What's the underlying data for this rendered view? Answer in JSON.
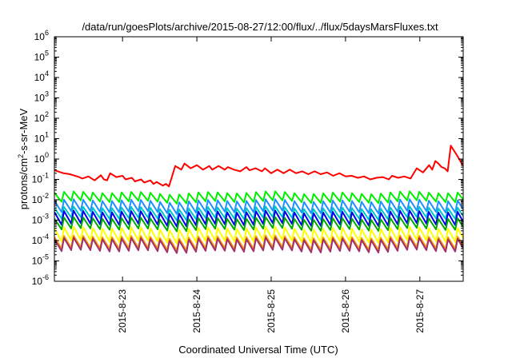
{
  "chart_data": {
    "type": "line",
    "title": "/data/run/goesPlots/archive/2015-08-27/12:00/flux/../flux/5daysMarsFluxes.txt",
    "xlabel": "Coordinated Universal Time (UTC)",
    "ylabel": {
      "prefix": "protons/cm",
      "superscript": "2",
      "suffix": "-s-sr-MeV"
    },
    "y_scale": "log",
    "ylim": [
      1e-06,
      1000000.0
    ],
    "y_ticks": [
      {
        "value": 1e-06,
        "base": "10",
        "exp": "-6"
      },
      {
        "value": 1e-05,
        "base": "10",
        "exp": "-5"
      },
      {
        "value": 0.0001,
        "base": "10",
        "exp": "-4"
      },
      {
        "value": 0.001,
        "base": "10",
        "exp": "-3"
      },
      {
        "value": 0.01,
        "base": "10",
        "exp": "-2"
      },
      {
        "value": 0.1,
        "base": "10",
        "exp": "-1"
      },
      {
        "value": 1,
        "base": "10",
        "exp": "0"
      },
      {
        "value": 10,
        "base": "10",
        "exp": "1"
      },
      {
        "value": 100,
        "base": "10",
        "exp": "2"
      },
      {
        "value": 1000,
        "base": "10",
        "exp": "3"
      },
      {
        "value": 10000,
        "base": "10",
        "exp": "4"
      },
      {
        "value": 100000,
        "base": "10",
        "exp": "5"
      },
      {
        "value": 1000000,
        "base": "10",
        "exp": "6"
      }
    ],
    "xlim": [
      "2015-08-22T02:00",
      "2015-08-27T14:00"
    ],
    "x_ticks": [
      {
        "value": "2015-08-23T00:00",
        "label": "2015-8-23"
      },
      {
        "value": "2015-08-24T00:00",
        "label": "2015-8-24"
      },
      {
        "value": "2015-08-25T00:00",
        "label": "2015-8-25"
      },
      {
        "value": "2015-08-26T00:00",
        "label": "2015-8-26"
      },
      {
        "value": "2015-08-27T00:00",
        "label": "2015-8-27"
      }
    ],
    "grid": false,
    "legend": "none",
    "series": [
      {
        "color": "#ff0000",
        "style": "smooth",
        "x": [
          "2015-08-22T02:00",
          "2015-08-22T05:00",
          "2015-08-22T07:00",
          "2015-08-22T10:00",
          "2015-08-22T11:00",
          "2015-08-22T13:00",
          "2015-08-22T14:00",
          "2015-08-22T15:00",
          "2015-08-22T17:00",
          "2015-08-22T18:00",
          "2015-08-22T19:00",
          "2015-08-22T20:00",
          "2015-08-22T22:00",
          "2015-08-23T00:00",
          "2015-08-23T01:00",
          "2015-08-23T03:00",
          "2015-08-23T04:00",
          "2015-08-23T06:00",
          "2015-08-23T07:00",
          "2015-08-23T09:00",
          "2015-08-23T10:00",
          "2015-08-23T11:00",
          "2015-08-23T13:00",
          "2015-08-23T14:00",
          "2015-08-23T15:00",
          "2015-08-23T17:00",
          "2015-08-23T19:00",
          "2015-08-23T20:00",
          "2015-08-23T22:00",
          "2015-08-24T00:00",
          "2015-08-24T02:00",
          "2015-08-24T04:00",
          "2015-08-24T05:00",
          "2015-08-24T07:00",
          "2015-08-24T09:00",
          "2015-08-24T10:00",
          "2015-08-24T12:00",
          "2015-08-24T14:00",
          "2015-08-24T16:00",
          "2015-08-24T17:00",
          "2015-08-24T19:00",
          "2015-08-24T21:00",
          "2015-08-24T22:00",
          "2015-08-25T00:00",
          "2015-08-25T02:00",
          "2015-08-25T04:00",
          "2015-08-25T06:00",
          "2015-08-25T08:00",
          "2015-08-25T10:00",
          "2015-08-25T12:00",
          "2015-08-25T14:00",
          "2015-08-25T16:00",
          "2015-08-25T18:00",
          "2015-08-25T20:00",
          "2015-08-25T22:00",
          "2015-08-26T00:00",
          "2015-08-26T02:00",
          "2015-08-26T04:00",
          "2015-08-26T06:00",
          "2015-08-26T08:00",
          "2015-08-26T10:00",
          "2015-08-26T12:00",
          "2015-08-26T14:00",
          "2015-08-26T15:00",
          "2015-08-26T17:00",
          "2015-08-26T19:00",
          "2015-08-26T21:00",
          "2015-08-26T23:00",
          "2015-08-27T01:00",
          "2015-08-27T03:00",
          "2015-08-27T04:00",
          "2015-08-27T05:00",
          "2015-08-27T06:00",
          "2015-08-27T07:00",
          "2015-08-27T08:00",
          "2015-08-27T09:00",
          "2015-08-27T10:00",
          "2015-08-27T12:00",
          "2015-08-27T14:00"
        ],
        "y": [
          0.28,
          0.2,
          0.18,
          0.13,
          0.11,
          0.14,
          0.11,
          0.09,
          0.16,
          0.1,
          0.09,
          0.2,
          0.13,
          0.15,
          0.1,
          0.12,
          0.08,
          0.1,
          0.07,
          0.09,
          0.06,
          0.075,
          0.05,
          0.06,
          0.045,
          0.45,
          0.3,
          0.6,
          0.35,
          0.5,
          0.3,
          0.45,
          0.3,
          0.45,
          0.3,
          0.4,
          0.3,
          0.25,
          0.4,
          0.28,
          0.35,
          0.25,
          0.35,
          0.2,
          0.3,
          0.2,
          0.3,
          0.2,
          0.25,
          0.18,
          0.25,
          0.18,
          0.22,
          0.15,
          0.2,
          0.14,
          0.15,
          0.12,
          0.14,
          0.1,
          0.12,
          0.13,
          0.1,
          0.15,
          0.12,
          0.14,
          0.11,
          0.35,
          0.22,
          0.5,
          0.3,
          0.8,
          0.6,
          0.4,
          0.35,
          0.25,
          4.5,
          1.5,
          0.45
        ]
      },
      {
        "color": "#00ee00",
        "style": "sawtooth",
        "start": "2015-08-22T02:00",
        "end": "2015-08-27T14:00",
        "period_hours": 3.1,
        "peak": 0.022,
        "trough": 0.008
      },
      {
        "color": "#1e90ff",
        "style": "sawtooth",
        "start": "2015-08-22T02:00",
        "end": "2015-08-27T14:00",
        "period_hours": 3.1,
        "peak": 0.009,
        "trough": 0.0025
      },
      {
        "color": "#00c8c8",
        "style": "sawtooth",
        "start": "2015-08-22T02:00",
        "end": "2015-08-27T14:00",
        "period_hours": 3.1,
        "peak": 0.004,
        "trough": 0.0012
      },
      {
        "color": "#0000ee",
        "style": "sawtooth",
        "start": "2015-08-22T02:00",
        "end": "2015-08-27T14:00",
        "period_hours": 3.1,
        "peak": 0.0025,
        "trough": 0.0006
      },
      {
        "color": "#00aa00",
        "style": "sawtooth",
        "start": "2015-08-22T02:00",
        "end": "2015-08-27T14:00",
        "period_hours": 3.1,
        "peak": 0.0012,
        "trough": 0.00035
      },
      {
        "color": "#ffff00",
        "style": "sawtooth",
        "start": "2015-08-22T02:00",
        "end": "2015-08-27T14:00",
        "period_hours": 3.1,
        "peak": 0.0004,
        "trough": 9e-05
      },
      {
        "color": "#ff9900",
        "style": "sawtooth",
        "start": "2015-08-22T02:00",
        "end": "2015-08-27T14:00",
        "period_hours": 3.1,
        "peak": 0.00015,
        "trough": 4e-05
      },
      {
        "color": "#a0306e",
        "style": "sawtooth",
        "start": "2015-08-22T02:00",
        "end": "2015-08-27T14:00",
        "period_hours": 3.1,
        "peak": 0.00012,
        "trough": 3e-05
      }
    ]
  }
}
